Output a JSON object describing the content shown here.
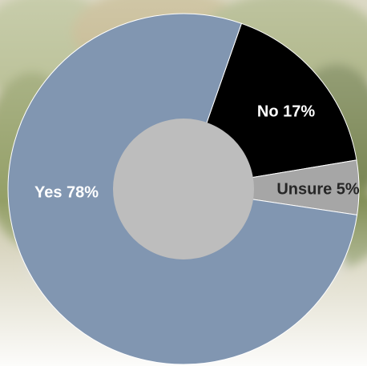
{
  "chart_data": {
    "type": "donut",
    "slices": [
      {
        "label": "Yes",
        "value": 78,
        "display": "Yes 78%",
        "color": "#8196B1",
        "text_color": "#ffffff"
      },
      {
        "label": "No",
        "value": 17,
        "display": "No 17%",
        "color": "#000000",
        "text_color": "#ffffff"
      },
      {
        "label": "Unsure",
        "value": 5,
        "display": "Unsure 5%",
        "color": "#A6A6A6",
        "text_color": "#262626"
      }
    ],
    "start": "Unsure, clockwise from just below the right",
    "background": "faded photo of green and autumn trees",
    "hole_color": "#BDBDBD"
  }
}
